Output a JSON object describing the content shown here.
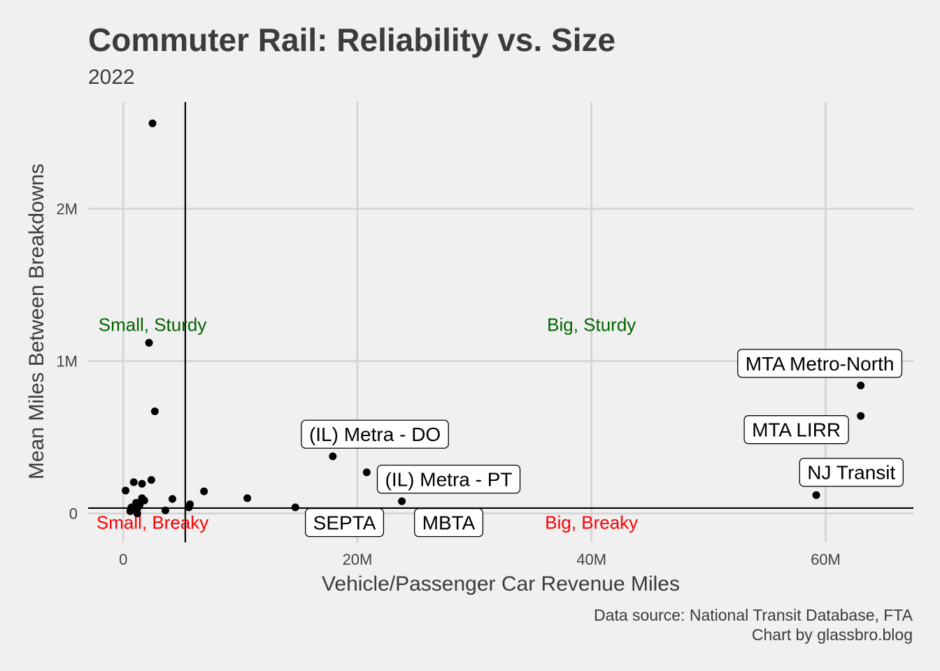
{
  "chart_data": {
    "type": "scatter",
    "title": "Commuter Rail: Reliability vs. Size",
    "subtitle": "2022",
    "xlabel": "Vehicle/Passenger Car Revenue Miles",
    "ylabel": "Mean Miles Between Breakdowns",
    "xlim": [
      -3000000,
      67500000
    ],
    "ylim": [
      -190000,
      2700000
    ],
    "x_ticks": [
      {
        "value": 0,
        "label": "0"
      },
      {
        "value": 20000000,
        "label": "20M"
      },
      {
        "value": 40000000,
        "label": "40M"
      },
      {
        "value": 60000000,
        "label": "60M"
      }
    ],
    "y_ticks": [
      {
        "value": 0,
        "label": "0"
      },
      {
        "value": 1000000,
        "label": "1M"
      },
      {
        "value": 2000000,
        "label": "2M"
      }
    ],
    "grid": true,
    "reference_lines": {
      "x": 5300000,
      "y": 35000
    },
    "quadrant_labels": [
      {
        "text": "Small, Sturdy",
        "x": 2500000,
        "y": 1240000,
        "color": "#006400"
      },
      {
        "text": "Big, Sturdy",
        "x": 40000000,
        "y": 1240000,
        "color": "#006400"
      },
      {
        "text": "Small, Breaky",
        "x": 2500000,
        "y": -60000,
        "color": "#ff0000"
      },
      {
        "text": "Big, Breaky",
        "x": 40000000,
        "y": -60000,
        "color": "#ff0000"
      }
    ],
    "points": [
      {
        "x": 2500000,
        "y": 2560000
      },
      {
        "x": 2200000,
        "y": 1120000
      },
      {
        "x": 2700000,
        "y": 670000
      },
      {
        "x": 200000,
        "y": 150000
      },
      {
        "x": 900000,
        "y": 205000
      },
      {
        "x": 1600000,
        "y": 195000
      },
      {
        "x": 2400000,
        "y": 220000
      },
      {
        "x": 1600000,
        "y": 100000
      },
      {
        "x": 1800000,
        "y": 85000
      },
      {
        "x": 1100000,
        "y": 70000
      },
      {
        "x": 1400000,
        "y": 55000
      },
      {
        "x": 700000,
        "y": 40000
      },
      {
        "x": 1200000,
        "y": 30000
      },
      {
        "x": 600000,
        "y": 15000
      },
      {
        "x": 1200000,
        "y": 0
      },
      {
        "x": 3600000,
        "y": 20000
      },
      {
        "x": 4200000,
        "y": 95000
      },
      {
        "x": 5700000,
        "y": 60000
      },
      {
        "x": 5600000,
        "y": 40000
      },
      {
        "x": 6900000,
        "y": 145000
      },
      {
        "x": 10600000,
        "y": 100000
      },
      {
        "x": 14700000,
        "y": 40000
      },
      {
        "x": 17900000,
        "y": 375000,
        "label": "(IL) Metra - DO"
      },
      {
        "x": 20800000,
        "y": 270000,
        "label": "(IL) Metra - PT"
      },
      {
        "x": 23800000,
        "y": 80000,
        "label": "MBTA"
      },
      {
        "x": 59200000,
        "y": 120000,
        "label": "NJ Transit"
      },
      {
        "x": 63000000,
        "y": 640000,
        "label": "MTA LIRR"
      },
      {
        "x": 63000000,
        "y": 840000,
        "label": "MTA Metro-North"
      }
    ],
    "label_boxes": [
      {
        "text": "MTA Metro-North",
        "x": 59500000,
        "y": 985000
      },
      {
        "text": "MTA LIRR",
        "x": 57500000,
        "y": 550000
      },
      {
        "text": "NJ Transit",
        "x": 62200000,
        "y": 270000
      },
      {
        "text": "(IL) Metra - DO",
        "x": 21500000,
        "y": 520000
      },
      {
        "text": "(IL) Metra - PT",
        "x": 27800000,
        "y": 225000
      },
      {
        "text": "SEPTA",
        "x": 18900000,
        "y": -60000
      },
      {
        "text": "MBTA",
        "x": 27800000,
        "y": -60000
      }
    ]
  },
  "caption": {
    "line1": "Data source: National Transit Database, FTA",
    "line2": "Chart by glassbro.blog"
  }
}
